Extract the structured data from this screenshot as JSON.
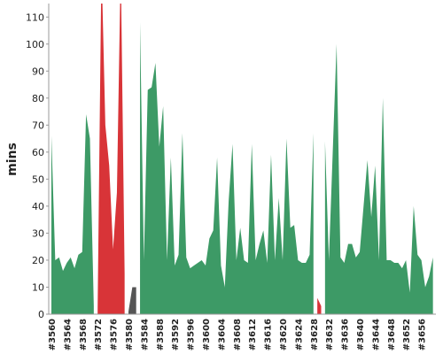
{
  "chart_data": {
    "type": "area",
    "y_label": "mins",
    "categories": [
      "#3560",
      null,
      null,
      null,
      "#3564",
      null,
      null,
      null,
      "#3568",
      null,
      null,
      null,
      "#3572",
      null,
      null,
      null,
      "#3576",
      null,
      null,
      null,
      "#3580",
      null,
      null,
      null,
      "#3584",
      null,
      null,
      null,
      "#3588",
      null,
      null,
      null,
      "#3592",
      null,
      null,
      null,
      "#3596",
      null,
      null,
      null,
      "#3600",
      null,
      null,
      null,
      "#3604",
      null,
      null,
      null,
      "#3608",
      null,
      null,
      null,
      "#3612",
      null,
      null,
      null,
      "#3616",
      null,
      null,
      null,
      "#3620",
      null,
      null,
      null,
      "#3624",
      null,
      null,
      null,
      "#3628",
      null,
      null,
      null,
      "#3632",
      null,
      null,
      null,
      "#3636",
      null,
      null,
      null,
      "#3640",
      null,
      null,
      null,
      "#3644",
      null,
      null,
      null,
      "#3648",
      null,
      null,
      null,
      "#3652",
      null,
      null,
      null,
      "#3656",
      null,
      null,
      null
    ],
    "series": [
      {
        "color": "#3d9a66",
        "values": [
          66,
          20,
          21,
          16,
          19,
          21,
          17,
          22,
          23,
          74,
          65,
          3,
          null,
          null,
          null,
          null,
          null,
          null,
          null,
          null,
          null,
          null,
          null,
          108,
          20,
          83,
          84,
          93,
          62,
          77,
          20,
          58,
          18,
          22,
          67,
          21,
          17,
          18,
          19,
          20,
          18,
          28,
          31,
          58,
          18,
          10,
          42,
          63,
          20,
          32,
          20,
          19,
          63,
          20,
          26,
          31,
          19,
          59,
          20,
          43,
          20,
          65,
          32,
          33,
          20,
          19,
          19,
          22,
          67,
          null,
          null,
          64,
          20,
          60,
          100,
          21,
          19,
          26,
          26,
          21,
          23,
          40,
          57,
          36,
          55,
          20,
          80,
          20,
          20,
          19,
          19,
          17,
          20,
          8,
          40,
          22,
          20,
          10,
          14,
          21
        ]
      },
      {
        "color": "#d83438",
        "values": [
          null,
          null,
          null,
          null,
          null,
          null,
          null,
          null,
          null,
          null,
          null,
          null,
          2,
          130,
          70,
          55,
          24,
          45,
          130,
          15,
          null,
          null,
          null,
          null,
          null,
          null,
          null,
          null,
          null,
          null,
          null,
          null,
          null,
          null,
          null,
          null,
          null,
          null,
          null,
          null,
          null,
          null,
          null,
          null,
          null,
          null,
          null,
          null,
          null,
          null,
          null,
          null,
          null,
          null,
          null,
          null,
          null,
          null,
          null,
          null,
          null,
          null,
          null,
          null,
          null,
          null,
          null,
          null,
          null,
          6,
          3,
          null,
          null,
          null,
          null,
          null,
          null,
          null,
          null,
          null,
          null,
          null,
          null,
          null,
          null,
          null,
          null,
          null,
          null,
          null,
          null,
          null,
          null,
          null,
          null,
          null,
          null,
          null,
          null,
          null
        ]
      },
      {
        "color": "#555555",
        "values": [
          null,
          null,
          null,
          null,
          null,
          null,
          null,
          null,
          null,
          null,
          null,
          null,
          null,
          null,
          null,
          null,
          null,
          null,
          null,
          null,
          1,
          10,
          10,
          null,
          null,
          null,
          null,
          null,
          null,
          null,
          null,
          null,
          null,
          null,
          null,
          null,
          null,
          null,
          null,
          null,
          null,
          null,
          null,
          null,
          null,
          null,
          null,
          null,
          null,
          null,
          null,
          null,
          null,
          null,
          null,
          null,
          null,
          null,
          null,
          null,
          null,
          null,
          null,
          null,
          null,
          null,
          null,
          null,
          null,
          null,
          null,
          null,
          null,
          null,
          null,
          null,
          null,
          null,
          null,
          null,
          null,
          null,
          null,
          null,
          null,
          null,
          null,
          null,
          null,
          null,
          null,
          null,
          null,
          null,
          null,
          null,
          null,
          null,
          null,
          null
        ]
      }
    ],
    "ylim": [
      0,
      115
    ],
    "yticks": [
      0,
      10,
      20,
      30,
      40,
      50,
      60,
      70,
      80,
      90,
      100,
      110
    ]
  }
}
